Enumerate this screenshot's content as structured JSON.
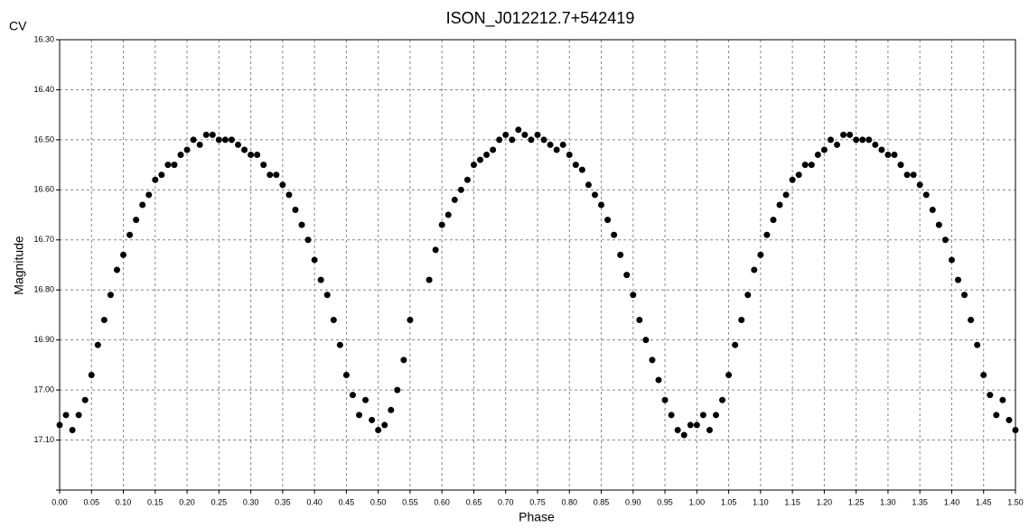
{
  "chart_data": {
    "type": "scatter",
    "title": "ISON_J012212.7+542419",
    "corner_label": "CV",
    "x_label": "Phase",
    "y_label": "Magnitude",
    "color": "#000000",
    "grid": true,
    "y_inverted": true,
    "xlim": [
      0,
      1.5
    ],
    "ylim": [
      16.3,
      17.2
    ],
    "xticks": [
      {
        "value": 0,
        "label": "0.00"
      },
      {
        "value": 0.05,
        "label": "0.05"
      },
      {
        "value": 0.1,
        "label": "0.10"
      },
      {
        "value": 0.15,
        "label": "0.15"
      },
      {
        "value": 0.2,
        "label": "0.20"
      },
      {
        "value": 0.25,
        "label": "0.25"
      },
      {
        "value": 0.3,
        "label": "0.30"
      },
      {
        "value": 0.35,
        "label": "0.35"
      },
      {
        "value": 0.4,
        "label": "0.40"
      },
      {
        "value": 0.45,
        "label": "0.45"
      },
      {
        "value": 0.5,
        "label": "0.50"
      },
      {
        "value": 0.55,
        "label": "0.55"
      },
      {
        "value": 0.6,
        "label": "0.60"
      },
      {
        "value": 0.65,
        "label": "0.65"
      },
      {
        "value": 0.7,
        "label": "0.70"
      },
      {
        "value": 0.75,
        "label": "0.75"
      },
      {
        "value": 0.8,
        "label": "0.80"
      },
      {
        "value": 0.85,
        "label": "0.85"
      },
      {
        "value": 0.9,
        "label": "0.90"
      },
      {
        "value": 0.95,
        "label": "0.95"
      },
      {
        "value": 1,
        "label": "1.00"
      },
      {
        "value": 1.05,
        "label": "1.05"
      },
      {
        "value": 1.1,
        "label": "1.10"
      },
      {
        "value": 1.15,
        "label": "1.15"
      },
      {
        "value": 1.2,
        "label": "1.20"
      },
      {
        "value": 1.25,
        "label": "1.25"
      },
      {
        "value": 1.3,
        "label": "1.30"
      },
      {
        "value": 1.35,
        "label": "1.35"
      },
      {
        "value": 1.4,
        "label": "1.40"
      },
      {
        "value": 1.45,
        "label": "1.45"
      },
      {
        "value": 1.5,
        "label": "1.50"
      }
    ],
    "yticks": [
      {
        "value": 16.3,
        "label": "16.30"
      },
      {
        "value": 16.4,
        "label": "16.40"
      },
      {
        "value": 16.5,
        "label": "16.50"
      },
      {
        "value": 16.6,
        "label": "16.60"
      },
      {
        "value": 16.7,
        "label": "16.70"
      },
      {
        "value": 16.8,
        "label": "16.80"
      },
      {
        "value": 16.9,
        "label": "16.90"
      },
      {
        "value": 17,
        "label": "17.00"
      },
      {
        "value": 17.1,
        "label": "17.10"
      },
      17.2
    ],
    "x": [
      0,
      0.01,
      0.02,
      0.03,
      0.04,
      0.05,
      0.06,
      0.07,
      0.08,
      0.09,
      0.1,
      0.11,
      0.12,
      0.13,
      0.14,
      0.15,
      0.16,
      0.17,
      0.18,
      0.19,
      0.2,
      0.21,
      0.22,
      0.23,
      0.24,
      0.25,
      0.26,
      0.27,
      0.28,
      0.29,
      0.3,
      0.31,
      0.32,
      0.33,
      0.34,
      0.35,
      0.36,
      0.37,
      0.38,
      0.39,
      0.4,
      0.41,
      0.42,
      0.43,
      0.44,
      0.45,
      0.46,
      0.47,
      0.48,
      0.49,
      0.5,
      0.51,
      0.52,
      0.53,
      0.54,
      0.55,
      0.58,
      0.59,
      0.6,
      0.61,
      0.62,
      0.63,
      0.64,
      0.65,
      0.66,
      0.67,
      0.68,
      0.69,
      0.7,
      0.71,
      0.72,
      0.73,
      0.74,
      0.75,
      0.76,
      0.77,
      0.78,
      0.79,
      0.8,
      0.81,
      0.82,
      0.83,
      0.84,
      0.85,
      0.86,
      0.87,
      0.88,
      0.89,
      0.9,
      0.91,
      0.92,
      0.93,
      0.94,
      0.95,
      0.96,
      0.97,
      0.98,
      0.99,
      1,
      1.01,
      1.02,
      1.03,
      1.04,
      1.05,
      1.06,
      1.07,
      1.08,
      1.09,
      1.1,
      1.11,
      1.12,
      1.13,
      1.14,
      1.15,
      1.16,
      1.17,
      1.18,
      1.19,
      1.2,
      1.21,
      1.22,
      1.23,
      1.24,
      1.25,
      1.26,
      1.27,
      1.28,
      1.29,
      1.3,
      1.31,
      1.32,
      1.33,
      1.34,
      1.35,
      1.36,
      1.37,
      1.38,
      1.39,
      1.4,
      1.41,
      1.42,
      1.43,
      1.44,
      1.45,
      1.46,
      1.47,
      1.48,
      1.49,
      1.5
    ],
    "values": [
      17.07,
      17.05,
      17.08,
      17.05,
      17.02,
      16.97,
      16.91,
      16.86,
      16.81,
      16.76,
      16.73,
      16.69,
      16.66,
      16.63,
      16.61,
      16.58,
      16.57,
      16.55,
      16.55,
      16.53,
      16.52,
      16.5,
      16.51,
      16.49,
      16.49,
      16.5,
      16.5,
      16.5,
      16.51,
      16.52,
      16.53,
      16.53,
      16.55,
      16.57,
      16.57,
      16.59,
      16.61,
      16.64,
      16.67,
      16.7,
      16.74,
      16.78,
      16.81,
      16.86,
      16.91,
      16.97,
      17.01,
      17.05,
      17.02,
      17.06,
      17.08,
      17.07,
      17.04,
      17,
      16.94,
      16.86,
      16.78,
      16.72,
      16.67,
      16.65,
      16.62,
      16.6,
      16.58,
      16.55,
      16.54,
      16.53,
      16.52,
      16.5,
      16.49,
      16.5,
      16.48,
      16.49,
      16.5,
      16.49,
      16.5,
      16.51,
      16.52,
      16.51,
      16.53,
      16.55,
      16.56,
      16.59,
      16.61,
      16.63,
      16.66,
      16.69,
      16.73,
      16.77,
      16.81,
      16.86,
      16.9,
      16.94,
      16.98,
      17.02,
      17.05,
      17.08,
      17.09,
      17.07,
      17.07,
      17.05,
      17.08,
      17.05,
      17.02,
      16.97,
      16.91,
      16.86,
      16.81,
      16.76,
      16.73,
      16.69,
      16.66,
      16.63,
      16.61,
      16.58,
      16.57,
      16.55,
      16.55,
      16.53,
      16.52,
      16.5,
      16.51,
      16.49,
      16.49,
      16.5,
      16.5,
      16.5,
      16.51,
      16.52,
      16.53,
      16.53,
      16.55,
      16.57,
      16.57,
      16.59,
      16.61,
      16.64,
      16.67,
      16.7,
      16.74,
      16.78,
      16.81,
      16.86,
      16.91,
      16.97,
      17.01,
      17.05,
      17.02,
      17.06,
      17.08
    ]
  }
}
